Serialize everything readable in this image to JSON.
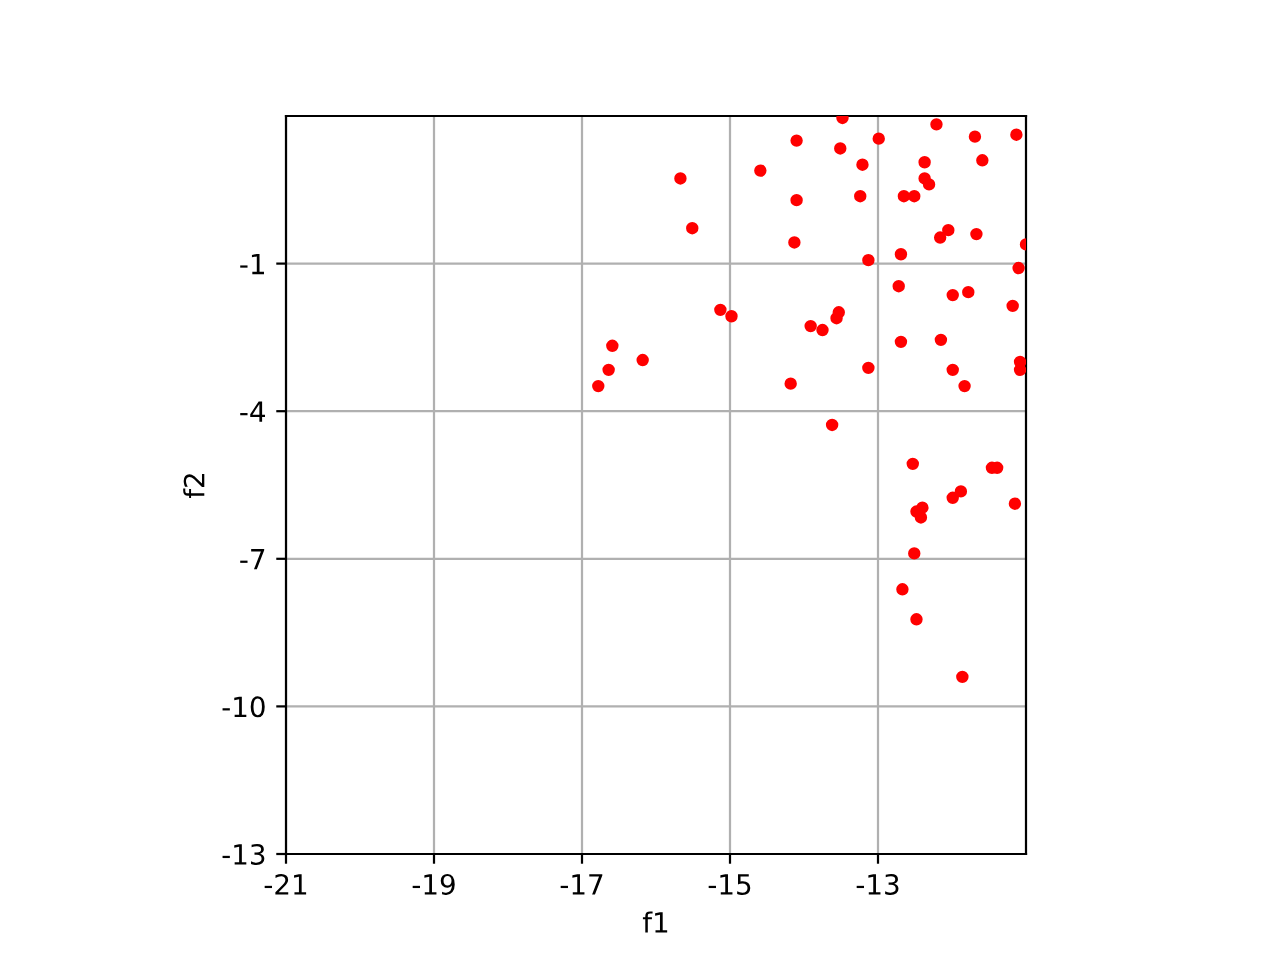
{
  "chart_data": {
    "type": "scatter",
    "xlabel": "f1",
    "ylabel": "f2",
    "xlim": [
      -21,
      -11
    ],
    "xticks": [
      -21,
      -19,
      -17,
      -15,
      -13
    ],
    "ylim": [
      -13,
      2
    ],
    "yticks": [
      -13,
      -10,
      -7,
      -4,
      -1
    ],
    "grid": true,
    "marker": "circle",
    "series": [
      {
        "color": "#ff0000",
        "x": [
          -13.48,
          -12.21,
          -11.13,
          -11.69,
          -12.99,
          -14.1,
          -13.51,
          -11.59,
          -12.37,
          -14.59,
          -13.21,
          -15.67,
          -12.37,
          -12.31,
          -14.1,
          -13.24,
          -12.65,
          -12.51,
          -15.51,
          -12.05,
          -12.16,
          -11.67,
          -11.0,
          -14.13,
          -13.13,
          -12.69,
          -11.1,
          -12.72,
          -11.99,
          -11.78,
          -11.18,
          -15.13,
          -14.98,
          -13.53,
          -13.56,
          -13.91,
          -13.75,
          -12.69,
          -12.15,
          -16.59,
          -16.64,
          -16.18,
          -16.78,
          -13.13,
          -11.99,
          -11.83,
          -11.08,
          -11.08,
          -14.18,
          -13.62,
          -12.53,
          -11.46,
          -11.39,
          -11.88,
          -11.99,
          -12.4,
          -12.48,
          -12.42,
          -11.15,
          -12.51,
          -12.67,
          -12.48,
          -11.86
        ],
        "values": [
          1.96,
          1.83,
          1.62,
          1.58,
          1.54,
          1.5,
          1.34,
          1.1,
          1.06,
          0.89,
          1.01,
          0.73,
          0.73,
          0.61,
          0.29,
          0.37,
          0.37,
          0.37,
          -0.28,
          -0.32,
          -0.47,
          -0.4,
          -0.61,
          -0.57,
          -0.93,
          -0.81,
          -1.09,
          -1.46,
          -1.64,
          -1.58,
          -1.86,
          -1.94,
          -2.07,
          -1.99,
          -2.11,
          -2.27,
          -2.35,
          -2.59,
          -2.55,
          -2.67,
          -3.16,
          -2.96,
          -3.49,
          -3.12,
          -3.16,
          -3.49,
          -3.0,
          -3.16,
          -3.44,
          -4.28,
          -5.07,
          -5.15,
          -5.15,
          -5.63,
          -5.76,
          -5.96,
          -6.04,
          -6.16,
          -5.88,
          -6.89,
          -7.62,
          -8.23,
          -9.4
        ]
      }
    ]
  }
}
